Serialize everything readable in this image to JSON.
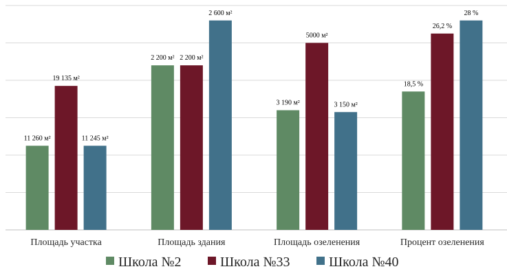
{
  "chart_data": {
    "type": "bar",
    "categories": [
      "Площадь участка",
      "Площадь здания",
      "Площадь озеленения",
      "Процент озеленения"
    ],
    "series": [
      {
        "name": "Школа №2",
        "color": "#5f8a64",
        "values": [
          45,
          88,
          64,
          74
        ],
        "labels": [
          "11 260 м²",
          "2 200 м²",
          "3 190 м²",
          "18,5 %"
        ]
      },
      {
        "name": "Школа №33",
        "color": "#6d1728",
        "values": [
          77,
          88,
          100,
          105
        ],
        "labels": [
          "19 135 м²",
          "2 200 м²",
          "5000 м²",
          "26,2 %"
        ]
      },
      {
        "name": "Школа №40",
        "color": "#41718a",
        "values": [
          45,
          112,
          63,
          112
        ],
        "labels": [
          "11 245 м²",
          "2 600 м²",
          "3 150 м²",
          "28 %"
        ]
      }
    ],
    "ylim": [
      0,
      120
    ],
    "grid": true,
    "legend": "bottom"
  }
}
